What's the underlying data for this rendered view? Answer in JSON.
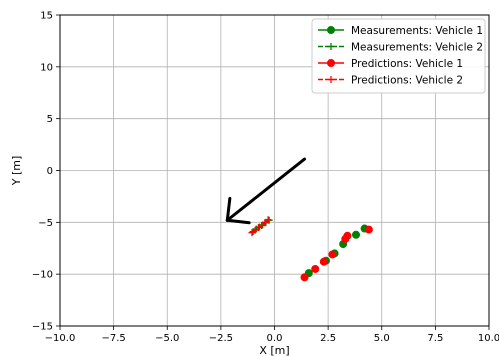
{
  "chart_data": {
    "type": "scatter",
    "title": "",
    "xlabel": "X [m]",
    "ylabel": "Y [m]",
    "xlim": [
      -10,
      10
    ],
    "ylim": [
      -15,
      15
    ],
    "xticks": [
      -10,
      -7.5,
      -5,
      -2.5,
      0,
      2.5,
      5,
      7.5,
      10
    ],
    "xtick_labels": [
      "−10.0",
      "−7.5",
      "−5.0",
      "−2.5",
      "0.0",
      "2.5",
      "5.0",
      "7.5",
      "10.0"
    ],
    "yticks": [
      -15,
      -10,
      -5,
      0,
      5,
      10,
      15
    ],
    "ytick_labels": [
      "−15",
      "−10",
      "−5",
      "0",
      "5",
      "10",
      "15"
    ],
    "grid": true,
    "legend_position": "top-right",
    "series": [
      {
        "name": "Measurements: Vehicle 1",
        "color": "#008000",
        "marker": "circle",
        "x": [
          1.6,
          2.4,
          2.8,
          3.2,
          3.8,
          4.2
        ],
        "y": [
          -9.9,
          -8.7,
          -8.0,
          -7.1,
          -6.2,
          -5.6
        ]
      },
      {
        "name": "Measurements: Vehicle 2",
        "color": "#008000",
        "marker": "plus",
        "x": [
          -1.0,
          -0.85,
          -0.7,
          -0.55,
          -0.4,
          -0.25
        ],
        "y": [
          -5.9,
          -5.65,
          -5.45,
          -5.25,
          -5.0,
          -4.8
        ]
      },
      {
        "name": "Predictions: Vehicle 1",
        "color": "#ff0000",
        "marker": "circle",
        "x": [
          1.4,
          1.9,
          2.3,
          2.7,
          3.3,
          3.4,
          4.4
        ],
        "y": [
          -10.3,
          -9.5,
          -8.8,
          -8.1,
          -6.6,
          -6.3,
          -5.7
        ]
      },
      {
        "name": "Predictions: Vehicle 2",
        "color": "#ff0000",
        "marker": "plus",
        "x": [
          -1.05,
          -0.9,
          -0.75,
          -0.6,
          -0.45,
          -0.3
        ],
        "y": [
          -6.0,
          -5.75,
          -5.5,
          -5.3,
          -5.05,
          -4.75
        ]
      }
    ],
    "annotations": [
      {
        "type": "arrow",
        "color": "#000000",
        "from": [
          1.4,
          1.1
        ],
        "to": [
          -2.2,
          -4.8
        ]
      }
    ]
  }
}
